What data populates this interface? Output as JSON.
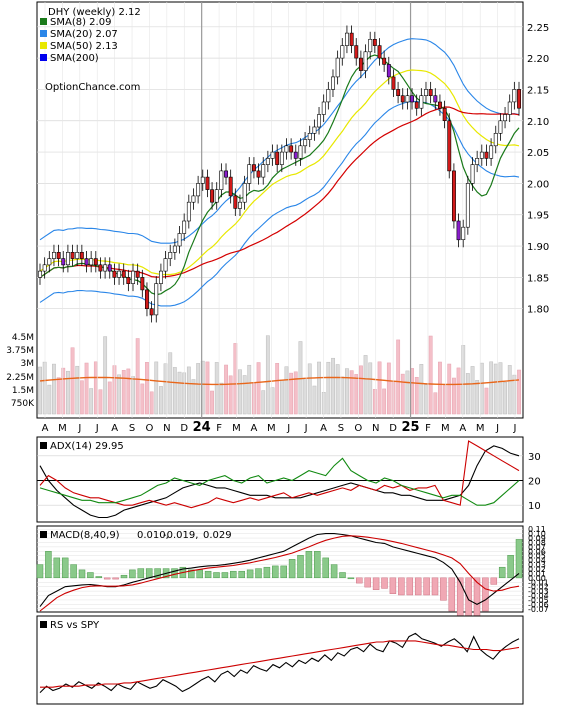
{
  "chart_data": [
    {
      "type": "candlestick",
      "title": "DHY (weekly) 2.12",
      "legend": [
        {
          "label": "SMA(8) 2.09",
          "color": "#1a7a1a"
        },
        {
          "label": "SMA(20) 2.07",
          "color": "#2a86e8"
        },
        {
          "label": "SMA(50) 2.13",
          "color": "#e8e800"
        },
        {
          "label": "SMA(200)",
          "color": "#0000ee"
        }
      ],
      "legend_placement": "top-left",
      "watermark": "OptionChance.com",
      "ylim": [
        1.75,
        2.28
      ],
      "y_ticks": [
        "2.25",
        "2.20",
        "2.15",
        "2.10",
        "2.05",
        "2.00",
        "1.95",
        "1.90",
        "1.85",
        "1.80"
      ],
      "x_ticks": [
        "A",
        "M",
        "J",
        "J",
        "A",
        "S",
        "O",
        "N",
        "D",
        "24",
        "F",
        "M",
        "A",
        "M",
        "J",
        "J",
        "A",
        "S",
        "O",
        "N",
        "D",
        "25",
        "F",
        "M",
        "A",
        "M",
        "J",
        "J"
      ],
      "close": [
        1.86,
        1.87,
        1.88,
        1.89,
        1.88,
        1.87,
        1.89,
        1.88,
        1.89,
        1.88,
        1.87,
        1.88,
        1.87,
        1.86,
        1.87,
        1.86,
        1.85,
        1.86,
        1.85,
        1.84,
        1.86,
        1.85,
        1.83,
        1.8,
        1.79,
        1.84,
        1.86,
        1.88,
        1.89,
        1.9,
        1.92,
        1.94,
        1.97,
        1.98,
        2.0,
        2.01,
        1.99,
        1.97,
        1.99,
        2.02,
        2.01,
        1.98,
        1.96,
        1.97,
        2.0,
        2.03,
        2.02,
        2.01,
        2.03,
        2.04,
        2.05,
        2.03,
        2.05,
        2.06,
        2.05,
        2.04,
        2.06,
        2.07,
        2.08,
        2.09,
        2.11,
        2.13,
        2.15,
        2.17,
        2.2,
        2.22,
        2.24,
        2.22,
        2.2,
        2.18,
        2.21,
        2.23,
        2.22,
        2.2,
        2.19,
        2.17,
        2.15,
        2.14,
        2.13,
        2.14,
        2.13,
        2.12,
        2.14,
        2.15,
        2.14,
        2.13,
        2.12,
        2.1,
        2.02,
        1.94,
        1.91,
        1.93,
        2.0,
        2.03,
        2.04,
        2.05,
        2.04,
        2.06,
        2.08,
        2.1,
        2.11,
        2.13,
        2.15,
        2.12
      ],
      "volume_axis_ticks": [
        "4.5M",
        "3.75M",
        "3M",
        "2.25M",
        "1.5M",
        "750K"
      ],
      "volume_ylim": [
        0,
        5000000
      ]
    },
    {
      "type": "line",
      "title": "ADX(14) 29.95",
      "y_ticks": [
        "30",
        "20",
        "10"
      ],
      "ylim": [
        4,
        36
      ],
      "series": [
        {
          "color": "#000000",
          "values": [
            26,
            20,
            16,
            13,
            10,
            8,
            6,
            5,
            5,
            6,
            8,
            9,
            10,
            11,
            12,
            13,
            15,
            17,
            18,
            19,
            18,
            17,
            17,
            16,
            15,
            14,
            14,
            14,
            13,
            13,
            13,
            13,
            14,
            15,
            16,
            17,
            18,
            19,
            18,
            17,
            16,
            15,
            15,
            14,
            14,
            13,
            12,
            12,
            12,
            13,
            14,
            18,
            26,
            32,
            34,
            33,
            31,
            30
          ]
        },
        {
          "color": "#cc0000",
          "values": [
            18,
            22,
            20,
            17,
            15,
            14,
            13,
            13,
            12,
            11,
            10,
            10,
            11,
            12,
            11,
            10,
            11,
            10,
            9,
            10,
            11,
            13,
            12,
            11,
            12,
            13,
            12,
            13,
            14,
            15,
            13,
            14,
            15,
            14,
            15,
            16,
            17,
            16,
            18,
            17,
            16,
            18,
            17,
            18,
            16,
            17,
            17,
            18,
            12,
            11,
            10,
            36,
            34,
            32,
            30,
            28,
            26,
            24
          ]
        },
        {
          "color": "#128a12",
          "values": [
            17,
            16,
            15,
            14,
            13,
            12,
            12,
            11,
            11,
            11,
            12,
            13,
            14,
            16,
            18,
            19,
            21,
            20,
            19,
            18,
            20,
            21,
            22,
            20,
            19,
            21,
            22,
            19,
            20,
            21,
            20,
            22,
            24,
            23,
            22,
            26,
            29,
            24,
            22,
            20,
            19,
            21,
            20,
            18,
            17,
            16,
            15,
            14,
            13,
            14,
            14,
            12,
            10,
            10,
            11,
            14,
            17,
            20
          ]
        }
      ]
    },
    {
      "type": "line",
      "title_prefix": "MACD(8,40,9)",
      "values": {
        "macd": "0.010,",
        "signal": "-0.019,",
        "hist": "0.029"
      },
      "y_ticks": [
        "0.11",
        "0.10",
        "0.09",
        "0.08",
        "0.07",
        "0.06",
        "0.05",
        "0.04",
        "0.03",
        "0.02",
        "0.01",
        "0.00",
        "-0.01",
        "-0.02",
        "-0.03",
        "-0.04",
        "-0.05",
        "-0.06",
        "-0.07"
      ],
      "ylim": [
        -0.075,
        0.115
      ],
      "series": [
        {
          "color": "#000000",
          "values": [
            -0.065,
            -0.04,
            -0.03,
            -0.02,
            -0.018,
            -0.016,
            -0.015,
            -0.017,
            -0.02,
            -0.02,
            -0.016,
            -0.01,
            -0.005,
            0.0,
            0.005,
            0.01,
            0.015,
            0.02,
            0.022,
            0.025,
            0.027,
            0.028,
            0.03,
            0.033,
            0.036,
            0.04,
            0.045,
            0.05,
            0.055,
            0.06,
            0.07,
            0.08,
            0.09,
            0.098,
            0.1,
            0.1,
            0.098,
            0.095,
            0.09,
            0.085,
            0.08,
            0.078,
            0.07,
            0.065,
            0.06,
            0.055,
            0.05,
            0.045,
            0.035,
            0.02,
            -0.01,
            -0.05,
            -0.06,
            -0.05,
            -0.035,
            -0.02,
            -0.005,
            0.01
          ]
        },
        {
          "color": "#cc0000",
          "values": [
            -0.075,
            -0.06,
            -0.045,
            -0.035,
            -0.028,
            -0.022,
            -0.019,
            -0.018,
            -0.019,
            -0.019,
            -0.018,
            -0.016,
            -0.012,
            -0.007,
            -0.002,
            0.003,
            0.008,
            0.012,
            0.016,
            0.019,
            0.022,
            0.024,
            0.026,
            0.028,
            0.031,
            0.034,
            0.038,
            0.042,
            0.046,
            0.051,
            0.056,
            0.063,
            0.07,
            0.078,
            0.085,
            0.09,
            0.094,
            0.095,
            0.094,
            0.092,
            0.089,
            0.086,
            0.082,
            0.078,
            0.073,
            0.068,
            0.063,
            0.058,
            0.052,
            0.045,
            0.032,
            0.01,
            -0.01,
            -0.025,
            -0.03,
            -0.028,
            -0.022,
            -0.019
          ]
        }
      ]
    },
    {
      "type": "line",
      "title": "RS vs SPY",
      "series": [
        {
          "color": "#000000",
          "values": [
            40,
            46,
            42,
            44,
            48,
            45,
            50,
            47,
            44,
            49,
            46,
            42,
            48,
            45,
            43,
            50,
            47,
            44,
            46,
            52,
            49,
            46,
            41,
            44,
            48,
            52,
            55,
            50,
            57,
            60,
            55,
            61,
            58,
            65,
            62,
            60,
            66,
            63,
            68,
            64,
            70,
            67,
            72,
            69,
            75,
            70,
            77,
            74,
            80,
            82,
            78,
            85,
            80,
            78,
            88,
            86,
            82,
            92,
            95,
            90,
            88,
            86,
            83,
            87,
            90,
            85,
            78,
            92,
            80,
            75,
            71,
            78,
            83,
            87,
            90
          ]
        },
        {
          "color": "#cc0000",
          "values": [
            45,
            45,
            45,
            46,
            46,
            46,
            46,
            47,
            47,
            47,
            48,
            48,
            48,
            49,
            49,
            50,
            51,
            52,
            53,
            54,
            55,
            56,
            57,
            58,
            59,
            60,
            61,
            62,
            63,
            64,
            65,
            66,
            67,
            68,
            69,
            70,
            71,
            72,
            73,
            74,
            75,
            76,
            77,
            78,
            79,
            80,
            81,
            82,
            83,
            84,
            85,
            86,
            87,
            87,
            88,
            88,
            88,
            88,
            88,
            87,
            86,
            85,
            84,
            84,
            83,
            82,
            81,
            80,
            80,
            80,
            79,
            79,
            80,
            81,
            82
          ]
        }
      ]
    }
  ]
}
